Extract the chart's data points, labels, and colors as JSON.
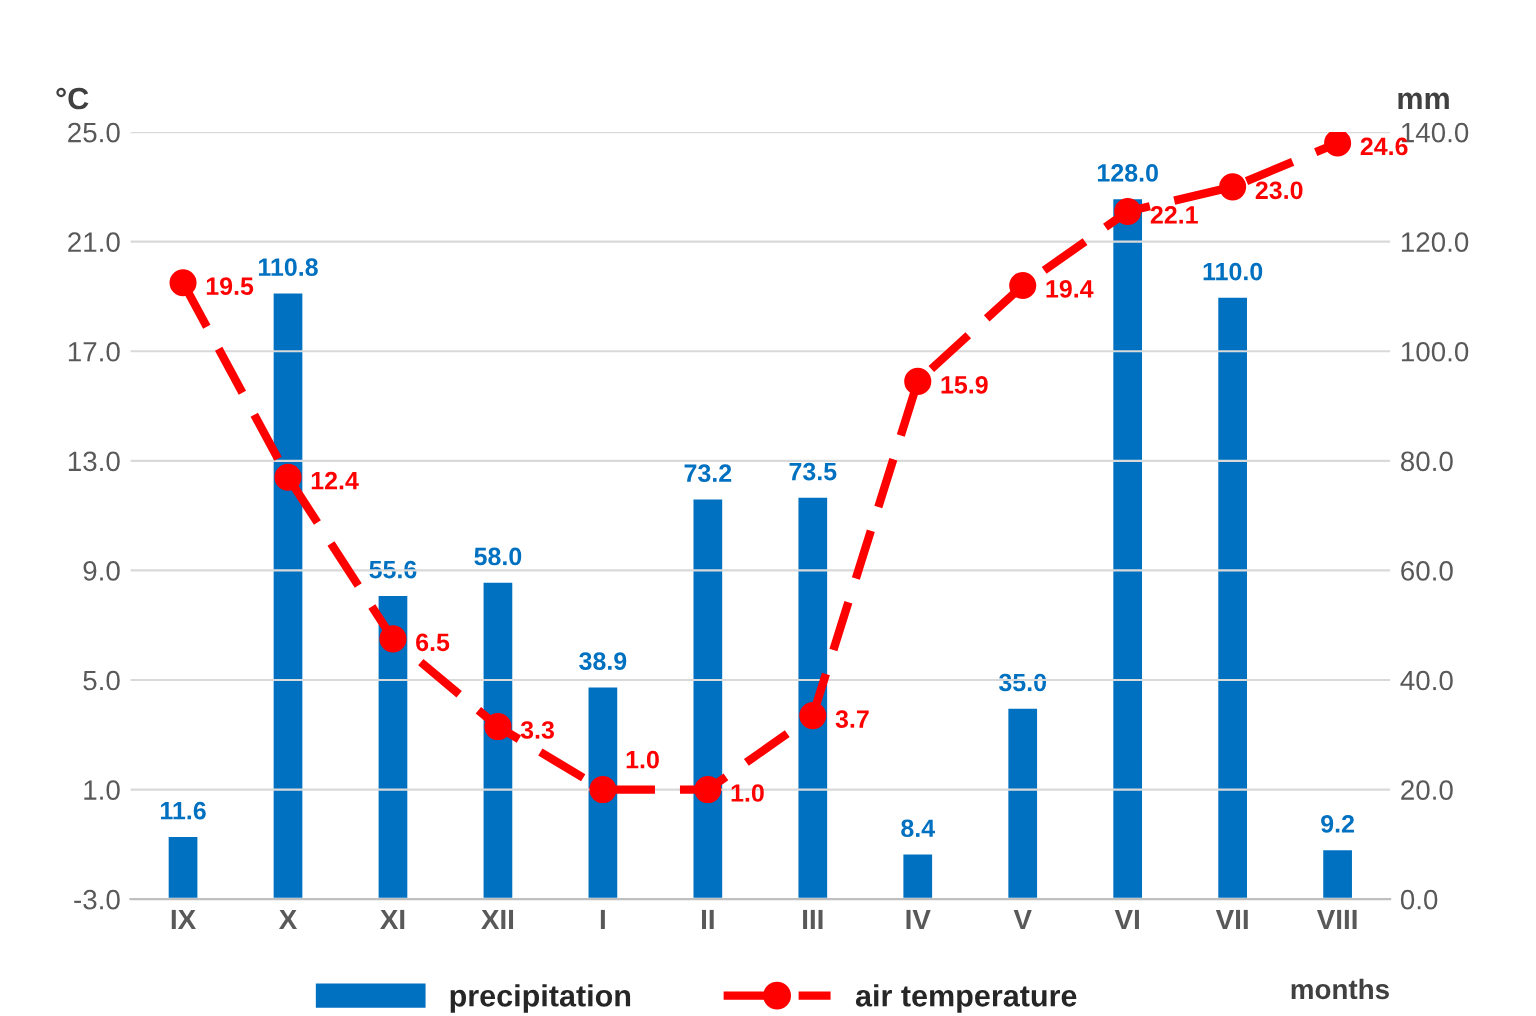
{
  "chart_data": {
    "type": "bar",
    "ylabel": "°C",
    "y2label": "mm",
    "xlabel": "months",
    "categories": [
      "IX",
      "X",
      "XI",
      "XII",
      "I",
      "II",
      "III",
      "IV",
      "V",
      "VI",
      "VII",
      "VIII"
    ],
    "series": [
      {
        "name": "precipitation",
        "axis": "y2",
        "color": "#0070c0",
        "values": [
          11.6,
          110.8,
          55.6,
          58.0,
          38.9,
          73.2,
          73.5,
          8.4,
          35.0,
          128.0,
          110.0,
          9.2
        ],
        "value_labels": [
          "11.6",
          "110.8",
          "55.6",
          "58.0",
          "38.9",
          "73.2",
          "73.5",
          "8.4",
          "35.0",
          "128.0",
          "110.0",
          "9.2"
        ]
      },
      {
        "name": "air temperature",
        "type": "line",
        "axis": "y",
        "color": "#ff0000",
        "marker": "circle",
        "line_style": "dashed",
        "values": [
          19.5,
          12.4,
          6.5,
          3.3,
          1.0,
          1.0,
          3.7,
          15.9,
          19.4,
          22.1,
          23.0,
          24.6
        ],
        "value_labels": [
          "19.5",
          "12.4",
          "6.5",
          "3.3",
          "1.0",
          "1.0",
          "3.7",
          "15.9",
          "19.4",
          "22.1",
          "23.0",
          "24.6"
        ]
      }
    ],
    "ylim": [
      -3,
      25
    ],
    "yticks": [
      {
        "value": -3,
        "label": "-3.0"
      },
      {
        "value": 1,
        "label": "1.0"
      },
      {
        "value": 5,
        "label": "5.0"
      },
      {
        "value": 9,
        "label": "9.0"
      },
      {
        "value": 13,
        "label": "13.0"
      },
      {
        "value": 17,
        "label": "17.0"
      },
      {
        "value": 21,
        "label": "21.0"
      },
      {
        "value": 25,
        "label": "25.0"
      }
    ],
    "y2lim": [
      0,
      140
    ],
    "y2ticks": [
      {
        "value": 0,
        "label": "0.0"
      },
      {
        "value": 20,
        "label": "20.0"
      },
      {
        "value": 40,
        "label": "40.0"
      },
      {
        "value": 60,
        "label": "60.0"
      },
      {
        "value": 80,
        "label": "80.0"
      },
      {
        "value": 100,
        "label": "100.0"
      },
      {
        "value": 120,
        "label": "120.0"
      },
      {
        "value": 140,
        "label": "140.0"
      }
    ],
    "grid": "y",
    "legend": "bottom"
  }
}
